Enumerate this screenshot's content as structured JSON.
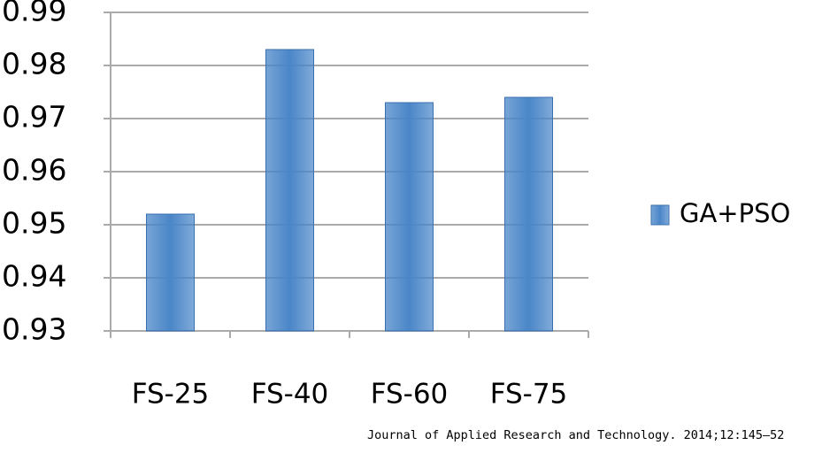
{
  "chart_data": {
    "type": "bar",
    "categories": [
      "FS-25",
      "FS-40",
      "FS-60",
      "FS-75"
    ],
    "series": [
      {
        "name": "GA+PSO",
        "color": "#4a86c8",
        "values": [
          0.952,
          0.983,
          0.973,
          0.974
        ]
      }
    ],
    "ylim": [
      0.93,
      0.99
    ],
    "yticks": [
      0.93,
      0.94,
      0.95,
      0.96,
      0.97,
      0.98,
      0.99
    ],
    "grid": true,
    "legend": "right",
    "source": "Journal of Applied Research and Technology. 2014;12:145–52"
  }
}
